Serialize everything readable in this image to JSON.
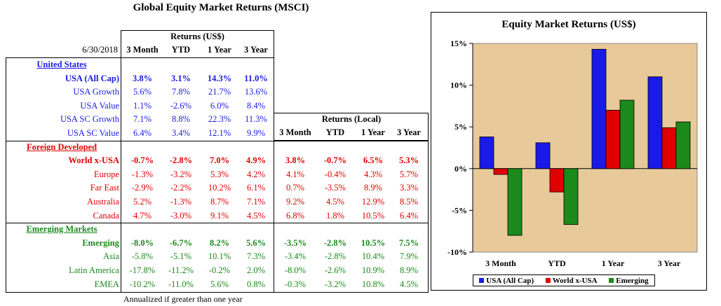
{
  "title": "Global Equity Market Returns (MSCI)",
  "date": "6/30/2018",
  "usd_header": "Returns (US$)",
  "local_header": "Returns (Local)",
  "columns": [
    "3 Month",
    "YTD",
    "1 Year",
    "3 Year"
  ],
  "footnote": "Annualized if greater than one year",
  "colors": {
    "us": "#1a1ae6",
    "foreign": "#e00000",
    "emerging": "#1b8a1b",
    "chart_bg": "#e8c99a"
  },
  "sections": [
    {
      "name": "United States",
      "color": "#1a1ae6",
      "rows": [
        {
          "label": "USA (All Cap)",
          "bold": true,
          "usd": [
            "3.8%",
            "3.1%",
            "14.3%",
            "11.0%"
          ]
        },
        {
          "label": "USA Growth",
          "bold": false,
          "usd": [
            "5.6%",
            "7.8%",
            "21.7%",
            "13.6%"
          ]
        },
        {
          "label": "USA Value",
          "bold": false,
          "usd": [
            "1.1%",
            "-2.6%",
            "6.0%",
            "8.4%"
          ]
        },
        {
          "label": "USA SC Growth",
          "bold": false,
          "usd": [
            "7.1%",
            "8.8%",
            "22.3%",
            "11.3%"
          ]
        },
        {
          "label": "USA SC Value",
          "bold": false,
          "usd": [
            "6.4%",
            "3.4%",
            "12.1%",
            "9.9%"
          ]
        }
      ]
    },
    {
      "name": "Foreign Developed",
      "color": "#e00000",
      "rows": [
        {
          "label": "World x-USA",
          "bold": true,
          "usd": [
            "-0.7%",
            "-2.8%",
            "7.0%",
            "4.9%"
          ],
          "local": [
            "3.8%",
            "-0.7%",
            "6.5%",
            "5.3%"
          ]
        },
        {
          "label": "Europe",
          "bold": false,
          "usd": [
            "-1.3%",
            "-3.2%",
            "5.3%",
            "4.2%"
          ],
          "local": [
            "4.1%",
            "-0.4%",
            "4.3%",
            "5.7%"
          ]
        },
        {
          "label": "Far East",
          "bold": false,
          "usd": [
            "-2.9%",
            "-2.2%",
            "10.2%",
            "6.1%"
          ],
          "local": [
            "0.7%",
            "-3.5%",
            "8.9%",
            "3.3%"
          ]
        },
        {
          "label": "Australia",
          "bold": false,
          "usd": [
            "5.2%",
            "-1.3%",
            "8.7%",
            "7.1%"
          ],
          "local": [
            "9.2%",
            "4.5%",
            "12.9%",
            "8.5%"
          ]
        },
        {
          "label": "Canada",
          "bold": false,
          "usd": [
            "4.7%",
            "-3.0%",
            "9.1%",
            "4.5%"
          ],
          "local": [
            "6.8%",
            "1.8%",
            "10.5%",
            "6.4%"
          ]
        }
      ]
    },
    {
      "name": "Emerging Markets",
      "color": "#1b8a1b",
      "rows": [
        {
          "label": "Emerging",
          "bold": true,
          "usd": [
            "-8.0%",
            "-6.7%",
            "8.2%",
            "5.6%"
          ],
          "local": [
            "-3.5%",
            "-2.8%",
            "10.5%",
            "7.5%"
          ]
        },
        {
          "label": "Asia",
          "bold": false,
          "usd": [
            "-5.8%",
            "-5.1%",
            "10.1%",
            "7.3%"
          ],
          "local": [
            "-3.4%",
            "-2.8%",
            "10.4%",
            "7.9%"
          ]
        },
        {
          "label": "Latin America",
          "bold": false,
          "usd": [
            "-17.8%",
            "-11.2%",
            "-0.2%",
            "2.0%"
          ],
          "local": [
            "-8.0%",
            "-2.6%",
            "10.9%",
            "8.9%"
          ]
        },
        {
          "label": "EMEA",
          "bold": false,
          "usd": [
            "-10.2%",
            "-11.0%",
            "5.6%",
            "0.8%"
          ],
          "local": [
            "-0.3%",
            "-3.2%",
            "10.8%",
            "4.5%"
          ]
        }
      ]
    }
  ],
  "chart_data": {
    "type": "bar",
    "title": "Equity Market Returns (US$)",
    "categories": [
      "3 Month",
      "YTD",
      "1 Year",
      "3 Year"
    ],
    "series": [
      {
        "name": "USA (All Cap)",
        "color": "#1a1ae6",
        "values": [
          3.8,
          3.1,
          14.3,
          11.0
        ]
      },
      {
        "name": "World x-USA",
        "color": "#e00000",
        "values": [
          -0.7,
          -2.8,
          7.0,
          4.9
        ]
      },
      {
        "name": "Emerging",
        "color": "#1b8a1b",
        "values": [
          -8.0,
          -6.7,
          8.2,
          5.6
        ]
      }
    ],
    "ylim": [
      -10,
      15
    ],
    "yticks": [
      -10,
      -5,
      0,
      5,
      10,
      15
    ],
    "ytick_labels": [
      "-10%",
      "-5%",
      "0%",
      "5%",
      "10%",
      "15%"
    ],
    "grid": false,
    "legend": "bottom"
  }
}
